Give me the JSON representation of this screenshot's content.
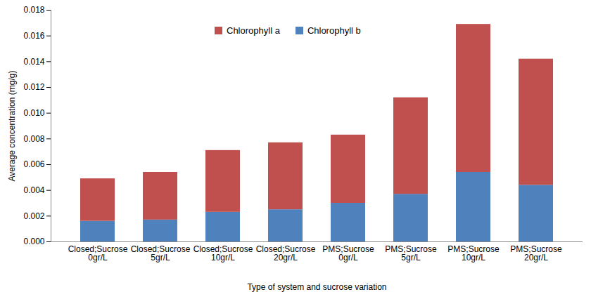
{
  "chart_data": {
    "type": "bar",
    "stacked": true,
    "x_label": "Type of system and sucrose variation",
    "y_label": "Average concentration (mg/g)",
    "categories": [
      "Closed;Sucrose 0gr/L",
      "Closed;Sucrose 5gr/L",
      "Closed;Sucrose 10gr/L",
      "Closed;Sucrose 20gr/L",
      "PMS;Sucrose 0gr/L",
      "PMS;Sucrose 5gr/L",
      "PMS;Sucrose 10gr/L",
      "PMS;Sucrose 20gr/L"
    ],
    "series": [
      {
        "name": "Chlorophyll a",
        "color": "#c0504d",
        "values": [
          0.0033,
          0.0037,
          0.0048,
          0.0052,
          0.0053,
          0.0075,
          0.0115,
          0.0098
        ]
      },
      {
        "name": "Chlorophyll b",
        "color": "#4f81bd",
        "values": [
          0.0016,
          0.0017,
          0.0023,
          0.0025,
          0.003,
          0.0037,
          0.0054,
          0.0044
        ]
      }
    ],
    "ylim": [
      0,
      0.018
    ],
    "yticks": [
      {
        "value": 0,
        "label": "0.000"
      },
      {
        "value": 0.002,
        "label": "0.002"
      },
      {
        "value": 0.004,
        "label": "0.004"
      },
      {
        "value": 0.006,
        "label": "0.006"
      },
      {
        "value": 0.008,
        "label": "0.008"
      },
      {
        "value": 0.01,
        "label": "0.010"
      },
      {
        "value": 0.012,
        "label": "0.012"
      },
      {
        "value": 0.014,
        "label": "0.014"
      },
      {
        "value": 0.016,
        "label": "0.016"
      },
      {
        "value": 0.018,
        "label": "0.018"
      }
    ],
    "legend": "top",
    "grid": false
  }
}
